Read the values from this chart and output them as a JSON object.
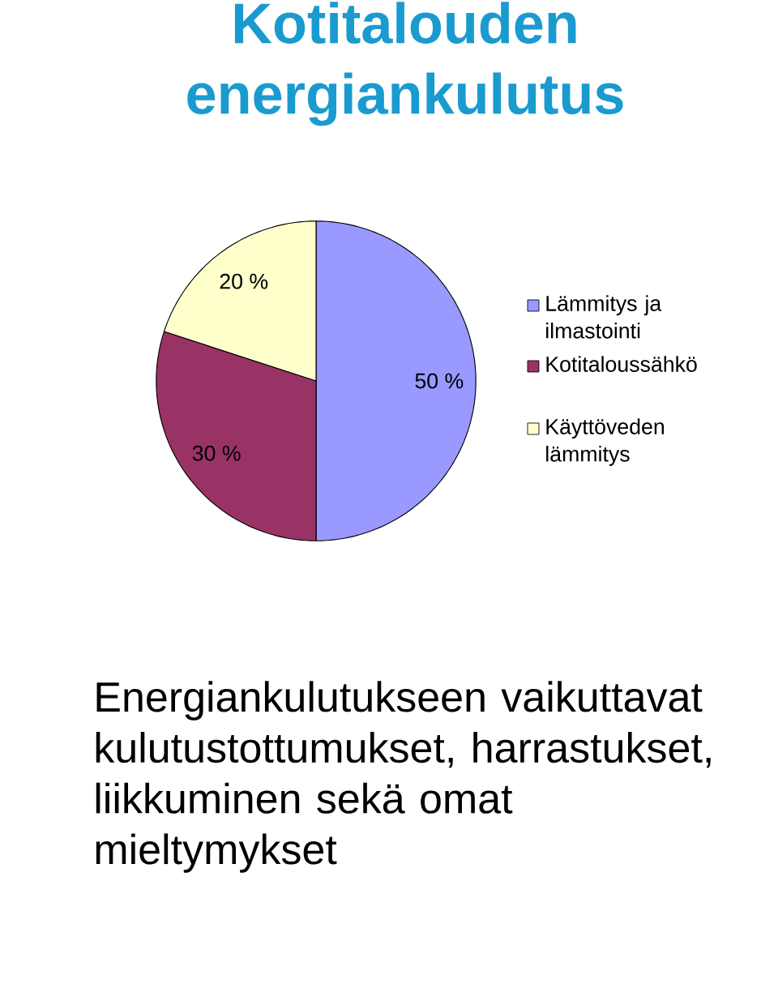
{
  "chart_data": {
    "type": "pie",
    "title": "Kotitalouden energiankulutus",
    "categories": [
      "Lämmitys ja ilmastointi",
      "Kotitaloussähkö",
      "Käyttöveden lämmitys"
    ],
    "values": [
      50,
      30,
      20
    ],
    "colors": [
      "#9999ff",
      "#993366",
      "#ffffcc"
    ],
    "value_labels": [
      "50 %",
      "30 %",
      "20 %"
    ],
    "legend": "right",
    "annotations": [
      "Energiankulutukseen vaikuttavat kulutustottumukset, harrastukset, liikkuminen sekä omat mieltymykset"
    ]
  }
}
